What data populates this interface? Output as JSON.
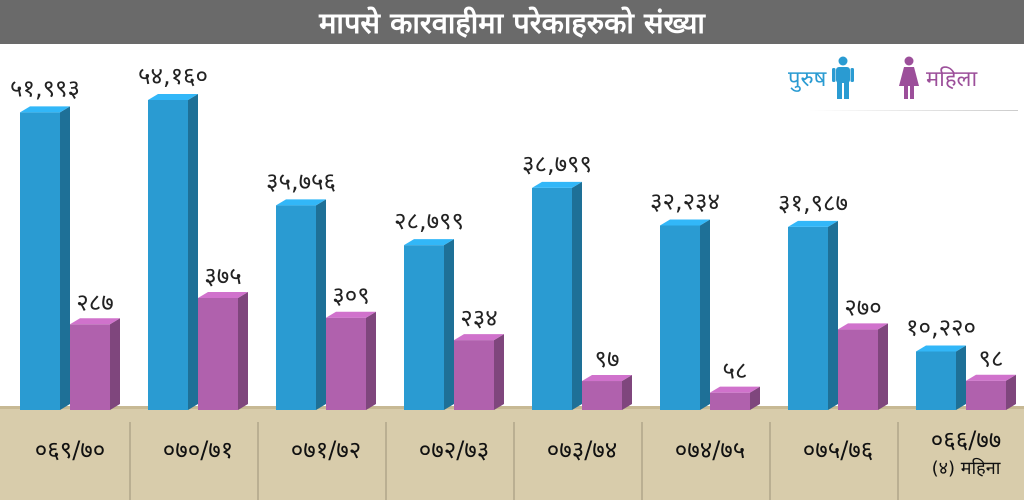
{
  "title": "मापसे कारवाहीमा परेकाहरुको संख्या",
  "legend": {
    "male_label": "पुरुष",
    "female_label": "महिला"
  },
  "colors": {
    "male": "#2a9bd2",
    "female": "#b061ad",
    "title_bg": "#6a6a6a",
    "floor": "#d8ccab"
  },
  "chart_data": {
    "type": "bar",
    "categories": [
      "०६९/७०",
      "०७०/७१",
      "०७१/७२",
      "०७२/७३",
      "०७३/७४",
      "०७४/७५",
      "०७५/७६",
      "०६६/७७"
    ],
    "category_notes": [
      "",
      "",
      "",
      "",
      "",
      "",
      "",
      "(४) महिना"
    ],
    "series": [
      {
        "name": "पुरुष",
        "values": [
          51993,
          54160,
          35756,
          28799,
          38799,
          32234,
          31987,
          10220
        ],
        "labels": [
          "५१,९९३",
          "५४,१६०",
          "३५,७५६",
          "२८,७९९",
          "३८,७९९",
          "३२,२३४",
          "३१,९८७",
          "१०,२२०"
        ]
      },
      {
        "name": "महिला",
        "values": [
          287,
          375,
          309,
          234,
          97,
          58,
          270,
          98
        ],
        "labels": [
          "२८७",
          "३७५",
          "३०९",
          "२३४",
          "९७",
          "५८",
          "२७०",
          "९८"
        ]
      }
    ],
    "grid": false,
    "legend_position": "top-right"
  }
}
